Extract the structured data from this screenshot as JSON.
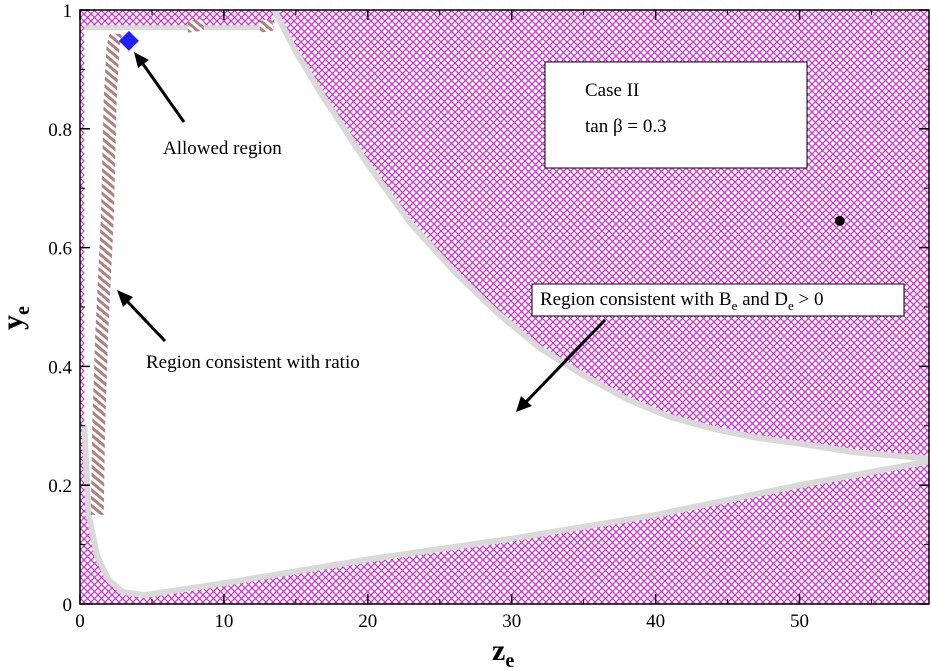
{
  "chart_data": {
    "type": "area",
    "xlabel": {
      "main": "z",
      "sub": "e"
    },
    "ylabel": {
      "main": "y",
      "sub": "e"
    },
    "xlim": [
      0,
      59
    ],
    "ylim": [
      0,
      1
    ],
    "xticks": [
      0,
      10,
      20,
      30,
      40,
      50
    ],
    "yticks": [
      0,
      0.2,
      0.4,
      0.6,
      0.8,
      1
    ],
    "ytick_labels": [
      "0",
      "0.2",
      "0.4",
      "0.6",
      "0.8",
      "1"
    ],
    "grid": false,
    "colors": {
      "hatched_region": "#cc33cc",
      "boundary": "#d9d9d9",
      "ratio_region": "#b08080",
      "allowed_point": "#1f1fff",
      "marker": "#000000"
    },
    "legend_box": {
      "line1": "Case II",
      "line2_prefix": "tan ",
      "line2_symbol": "β",
      "line2_suffix": "  = 0.3"
    },
    "regions": {
      "upper_boundary": [
        [
          13.5,
          1.0
        ],
        [
          15,
          0.93
        ],
        [
          17,
          0.85
        ],
        [
          20,
          0.74
        ],
        [
          23,
          0.64
        ],
        [
          26,
          0.56
        ],
        [
          29,
          0.49
        ],
        [
          32,
          0.43
        ],
        [
          35,
          0.385
        ],
        [
          38,
          0.345
        ],
        [
          41,
          0.315
        ],
        [
          44,
          0.295
        ],
        [
          47,
          0.28
        ],
        [
          50,
          0.27
        ],
        [
          54,
          0.255
        ],
        [
          59,
          0.245
        ]
      ],
      "lower_boundary": [
        [
          0.3,
          0.3
        ],
        [
          0.6,
          0.15
        ],
        [
          1.2,
          0.08
        ],
        [
          2.0,
          0.04
        ],
        [
          3.0,
          0.02
        ],
        [
          4.5,
          0.015
        ],
        [
          10,
          0.035
        ],
        [
          20,
          0.075
        ],
        [
          30,
          0.11
        ],
        [
          40,
          0.15
        ],
        [
          50,
          0.2
        ],
        [
          59,
          0.24
        ]
      ],
      "top_band_y": 0.97,
      "ratio_strip": [
        [
          1.2,
          0.15
        ],
        [
          1.3,
          0.3
        ],
        [
          1.5,
          0.45
        ],
        [
          1.7,
          0.55
        ],
        [
          1.9,
          0.65
        ],
        [
          2.0,
          0.75
        ],
        [
          2.1,
          0.85
        ],
        [
          2.3,
          0.94
        ],
        [
          2.5,
          0.96
        ]
      ],
      "allowed_point": [
        3.4,
        0.948
      ],
      "marker_point": [
        52.8,
        0.645
      ]
    },
    "annotations": {
      "allowed": "Allowed region",
      "ratio": "Region consistent with ratio",
      "be_prefix": "Region consistent with B",
      "be_sub": "e",
      "and": " and D",
      "de_sub": "e",
      "de_suffix": " > 0"
    }
  }
}
